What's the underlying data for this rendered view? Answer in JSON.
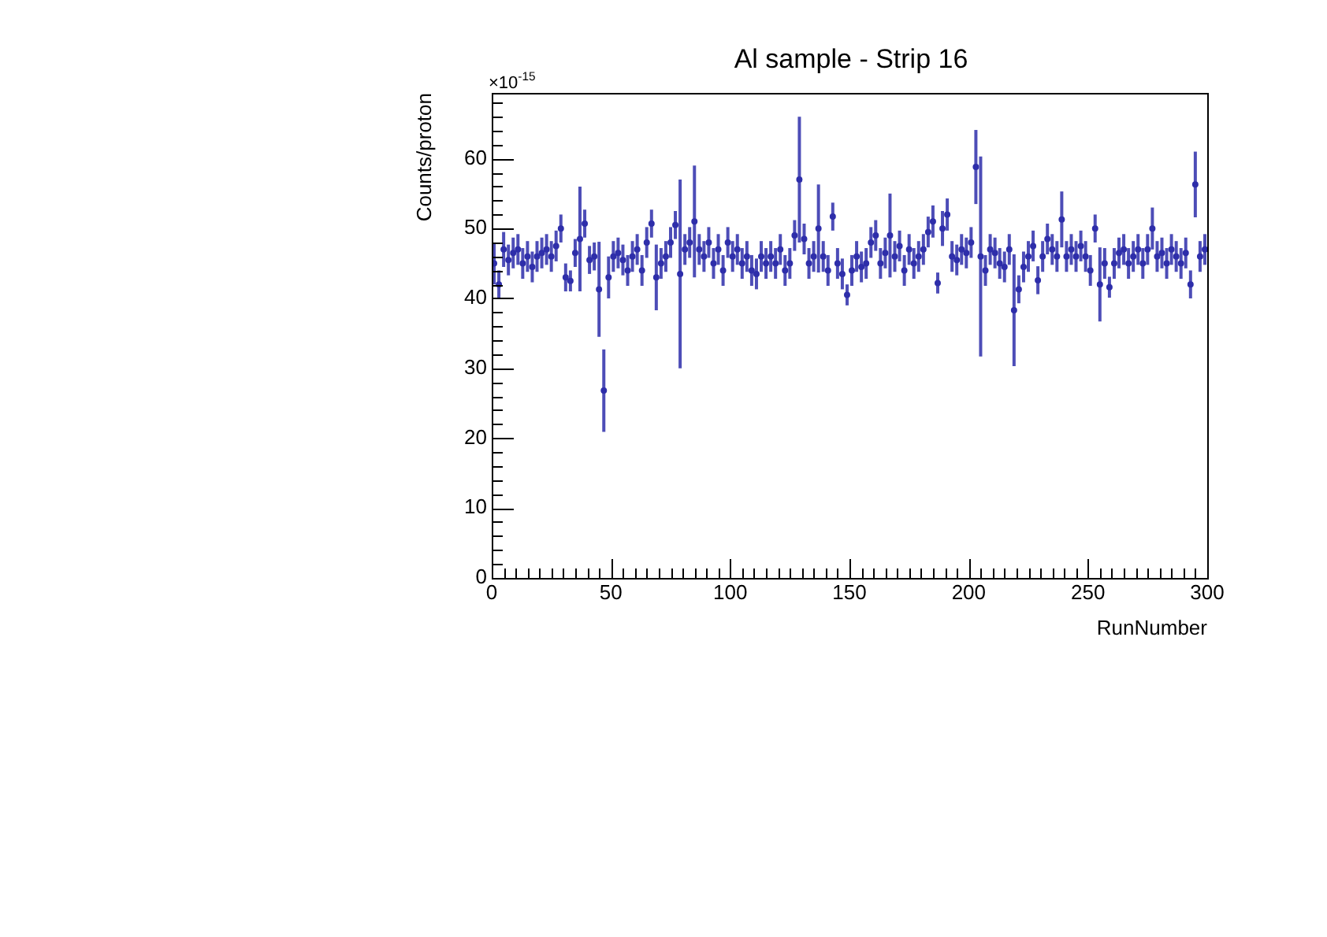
{
  "chart_data": {
    "type": "scatter",
    "title": "Al sample - Strip 16",
    "xlabel": "RunNumber",
    "ylabel": "Counts/proton",
    "annotations": [
      "×10$^{-15}$"
    ],
    "xlim": [
      0,
      300
    ],
    "ylim": [
      0,
      69.4
    ],
    "xticks": [
      0,
      {
        "value": 5,
        "label": null
      },
      {
        "value": 10,
        "label": null
      },
      {
        "value": 15,
        "label": null
      },
      {
        "value": 20,
        "label": null
      },
      {
        "value": 25,
        "label": null
      },
      {
        "value": 30,
        "label": null
      },
      {
        "value": 35,
        "label": null
      },
      {
        "value": 40,
        "label": null
      },
      {
        "value": 45,
        "label": null
      },
      50,
      {
        "value": 55,
        "label": null
      },
      {
        "value": 60,
        "label": null
      },
      {
        "value": 65,
        "label": null
      },
      {
        "value": 70,
        "label": null
      },
      {
        "value": 75,
        "label": null
      },
      {
        "value": 80,
        "label": null
      },
      {
        "value": 85,
        "label": null
      },
      {
        "value": 90,
        "label": null
      },
      {
        "value": 95,
        "label": null
      },
      100,
      {
        "value": 105,
        "label": null
      },
      {
        "value": 110,
        "label": null
      },
      {
        "value": 115,
        "label": null
      },
      {
        "value": 120,
        "label": null
      },
      {
        "value": 125,
        "label": null
      },
      {
        "value": 130,
        "label": null
      },
      {
        "value": 135,
        "label": null
      },
      {
        "value": 140,
        "label": null
      },
      {
        "value": 145,
        "label": null
      },
      150,
      {
        "value": 155,
        "label": null
      },
      {
        "value": 160,
        "label": null
      },
      {
        "value": 165,
        "label": null
      },
      {
        "value": 170,
        "label": null
      },
      {
        "value": 175,
        "label": null
      },
      {
        "value": 180,
        "label": null
      },
      {
        "value": 185,
        "label": null
      },
      {
        "value": 190,
        "label": null
      },
      {
        "value": 195,
        "label": null
      },
      200,
      {
        "value": 205,
        "label": null
      },
      {
        "value": 210,
        "label": null
      },
      {
        "value": 215,
        "label": null
      },
      {
        "value": 220,
        "label": null
      },
      {
        "value": 225,
        "label": null
      },
      {
        "value": 230,
        "label": null
      },
      {
        "value": 235,
        "label": null
      },
      {
        "value": 240,
        "label": null
      },
      {
        "value": 245,
        "label": null
      },
      250,
      {
        "value": 255,
        "label": null
      },
      {
        "value": 260,
        "label": null
      },
      {
        "value": 265,
        "label": null
      },
      {
        "value": 270,
        "label": null
      },
      {
        "value": 275,
        "label": null
      },
      {
        "value": 280,
        "label": null
      },
      {
        "value": 285,
        "label": null
      },
      {
        "value": 290,
        "label": null
      },
      {
        "value": 295,
        "label": null
      },
      300
    ],
    "yticks": [
      0,
      {
        "value": 2,
        "label": null
      },
      {
        "value": 4,
        "label": null
      },
      {
        "value": 6,
        "label": null
      },
      {
        "value": 8,
        "label": null
      },
      10,
      {
        "value": 12,
        "label": null
      },
      {
        "value": 14,
        "label": null
      },
      {
        "value": 16,
        "label": null
      },
      {
        "value": 18,
        "label": null
      },
      20,
      {
        "value": 22,
        "label": null
      },
      {
        "value": 24,
        "label": null
      },
      {
        "value": 26,
        "label": null
      },
      {
        "value": 28,
        "label": null
      },
      30,
      {
        "value": 32,
        "label": null
      },
      {
        "value": 34,
        "label": null
      },
      {
        "value": 36,
        "label": null
      },
      {
        "value": 38,
        "label": null
      },
      40,
      {
        "value": 42,
        "label": null
      },
      {
        "value": 44,
        "label": null
      },
      {
        "value": 46,
        "label": null
      },
      {
        "value": 48,
        "label": null
      },
      50,
      {
        "value": 52,
        "label": null
      },
      {
        "value": 54,
        "label": null
      },
      {
        "value": 56,
        "label": null
      },
      {
        "value": 58,
        "label": null
      },
      60,
      {
        "value": 62,
        "label": null
      },
      {
        "value": 64,
        "label": null
      },
      {
        "value": 66,
        "label": null
      },
      {
        "value": 68,
        "label": null
      }
    ],
    "grid": false,
    "marker": "circle",
    "series": [
      {
        "color": "#2e2eaa",
        "x": [
          1,
          3,
          5,
          7,
          9,
          11,
          13,
          15,
          17,
          19,
          21,
          23,
          25,
          27,
          29,
          31,
          33,
          35,
          37,
          39,
          41,
          43,
          45,
          47,
          49,
          51,
          53,
          55,
          57,
          59,
          61,
          63,
          65,
          67,
          69,
          71,
          73,
          75,
          77,
          79,
          81,
          83,
          85,
          87,
          89,
          91,
          93,
          95,
          97,
          99,
          101,
          103,
          105,
          107,
          109,
          111,
          113,
          115,
          117,
          119,
          121,
          123,
          125,
          127,
          129,
          131,
          133,
          135,
          137,
          139,
          141,
          143,
          145,
          147,
          149,
          151,
          153,
          155,
          157,
          159,
          161,
          163,
          165,
          167,
          169,
          171,
          173,
          175,
          177,
          179,
          181,
          183,
          185,
          187,
          189,
          191,
          193,
          195,
          197,
          199,
          201,
          203,
          205,
          207,
          209,
          211,
          213,
          215,
          217,
          219,
          221,
          223,
          225,
          227,
          229,
          231,
          233,
          235,
          237,
          239,
          241,
          243,
          245,
          247,
          249,
          251,
          253,
          255,
          257,
          259,
          261,
          263,
          265,
          267,
          269,
          271,
          273,
          275,
          277,
          279,
          281,
          283,
          285,
          287,
          289,
          291,
          293,
          295,
          297,
          299
        ],
        "values": [
          45,
          42,
          47,
          45.5,
          46.5,
          47,
          45,
          46,
          44.5,
          46,
          46.5,
          47,
          46,
          47.5,
          50,
          43,
          42.5,
          46.5,
          48.5,
          50.7,
          45.5,
          46,
          41.3,
          26.8,
          43,
          46,
          46.5,
          45.5,
          44,
          46,
          47,
          44,
          48,
          50.7,
          43,
          45,
          46,
          48,
          50.5,
          43.5,
          47,
          48,
          51,
          47,
          46,
          48,
          45,
          47,
          44,
          48,
          46,
          47,
          45,
          46,
          44,
          43.5,
          46,
          45,
          46,
          45,
          47,
          44,
          45,
          49,
          57,
          48.5,
          45,
          46,
          50,
          46,
          44,
          51.7,
          45,
          43.5,
          40.5,
          44,
          46,
          44.5,
          45,
          48,
          49,
          45,
          46.5,
          49,
          46,
          47.5,
          44,
          47,
          45,
          46,
          47,
          49.5,
          51,
          42.2,
          50,
          52,
          46,
          45.5,
          47,
          46.5,
          48,
          58.8,
          46,
          44,
          47,
          46.5,
          45,
          44.5,
          47,
          38.3,
          41.3,
          44.5,
          46,
          47.5,
          42.6,
          46,
          48.5,
          47,
          46,
          51.3,
          46,
          47,
          46,
          47.5,
          46,
          44,
          50,
          42,
          45,
          41.6,
          45,
          46.5,
          47,
          45,
          46,
          47,
          45,
          47,
          50,
          46,
          46.5,
          45,
          47,
          46,
          45,
          46.5,
          42,
          56.3,
          46,
          47
        ],
        "errors": [
          3,
          2,
          2.5,
          2.2,
          2.2,
          2.2,
          2.2,
          2.2,
          2.2,
          2.2,
          2.2,
          2.2,
          2.2,
          2.2,
          2,
          2,
          1.5,
          2,
          7.5,
          2,
          2,
          2,
          6.8,
          5.9,
          3,
          2.2,
          2.2,
          2.2,
          2.2,
          2.2,
          2.2,
          2.2,
          2.2,
          2,
          4.7,
          2.2,
          2.2,
          2.2,
          2,
          13.5,
          2.2,
          2.2,
          8,
          2.2,
          2.2,
          2.2,
          2.2,
          2.2,
          2.2,
          2.2,
          2.2,
          2.2,
          2.2,
          2.2,
          2.2,
          2.2,
          2.2,
          2.2,
          2.2,
          2.2,
          2.2,
          2.2,
          2.2,
          2.2,
          9,
          2.2,
          2.2,
          2.2,
          6.3,
          2.2,
          2.2,
          2,
          2.2,
          2.2,
          1.5,
          2.2,
          2.2,
          2.2,
          2.2,
          2.2,
          2.2,
          2.2,
          2.2,
          6,
          2.2,
          2.2,
          2.2,
          2.2,
          2.2,
          2.2,
          2.2,
          2.2,
          2.3,
          1.5,
          2.5,
          2.3,
          2.2,
          2.2,
          2.2,
          2.2,
          2.2,
          5.3,
          14.3,
          2.2,
          2.2,
          2.2,
          2.2,
          2.2,
          2.2,
          8,
          2,
          2.2,
          2.2,
          2.2,
          2,
          2.2,
          2.2,
          2.2,
          2.2,
          4,
          2.2,
          2.2,
          2.2,
          2.2,
          2.2,
          2.2,
          2,
          5.3,
          2.2,
          1.5,
          2.2,
          2.2,
          2.2,
          2.2,
          2.2,
          2.2,
          2.2,
          2.2,
          3,
          2.2,
          2.2,
          2.2,
          2.2,
          2.2,
          2.2,
          2.2,
          2,
          4.7,
          2.2,
          2.2
        ]
      }
    ]
  }
}
